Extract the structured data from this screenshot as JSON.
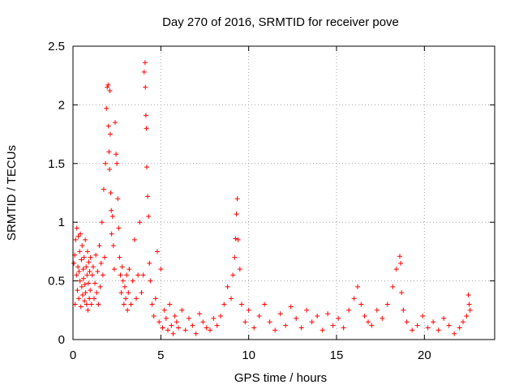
{
  "chart_data": {
    "type": "scatter",
    "title": "Day 270 of 2016, SRMTID for receiver pove",
    "xlabel": "GPS time / hours",
    "ylabel": "SRMTID / TECUs",
    "xlim": [
      0,
      24
    ],
    "ylim": [
      0,
      2.5
    ],
    "x_ticks": [
      0,
      5,
      10,
      15,
      20
    ],
    "x_tick_labels": [
      "0",
      "5",
      "10",
      "15",
      "20"
    ],
    "y_ticks": [
      0,
      0.5,
      1,
      1.5,
      2,
      2.5
    ],
    "y_tick_labels": [
      "0",
      "0.5",
      "1",
      "1.5",
      "2",
      "2.5"
    ],
    "grid": true,
    "legend": "none",
    "marker": "+",
    "color": "#ff0000",
    "series": [
      {
        "x": [
          0.05,
          0.1,
          0.12,
          0.15,
          0.2,
          0.22,
          0.25,
          0.28,
          0.3,
          0.33,
          0.35,
          0.38,
          0.4,
          0.42,
          0.45,
          0.48,
          0.5,
          0.52,
          0.55,
          0.58,
          0.6,
          0.63,
          0.65,
          0.68,
          0.7,
          0.72,
          0.75,
          0.78,
          0.8,
          0.83,
          0.85,
          0.88,
          0.9,
          0.93,
          0.95,
          0.98,
          1.0,
          1.05,
          1.1,
          1.15,
          1.2,
          1.25,
          1.3,
          1.35,
          1.4,
          1.45,
          1.5,
          1.55,
          1.6,
          1.65,
          1.7,
          1.75,
          1.8,
          1.85,
          1.9,
          1.95,
          2.0,
          2.02,
          2.05,
          2.08,
          2.1,
          2.12,
          2.15,
          2.18,
          2.2,
          2.25,
          2.3,
          2.35,
          2.4,
          2.45,
          2.5,
          2.55,
          2.6,
          2.65,
          2.7,
          2.75,
          2.8,
          2.85,
          2.9,
          2.95,
          3.0,
          3.05,
          3.1,
          3.15,
          3.2,
          3.3,
          3.4,
          3.5,
          3.6,
          3.7,
          3.8,
          3.9,
          4.0,
          4.05,
          4.1,
          4.12,
          4.15,
          4.18,
          4.2,
          4.25,
          4.3,
          4.35,
          4.4,
          4.5,
          4.6,
          4.7,
          4.8,
          4.9,
          5.0,
          5.1,
          5.2,
          5.3,
          5.4,
          5.5,
          5.6,
          5.7,
          5.8,
          5.9,
          6.0,
          6.2,
          6.4,
          6.6,
          6.8,
          7.0,
          7.2,
          7.4,
          7.6,
          7.8,
          8.0,
          8.2,
          8.4,
          8.6,
          8.8,
          9.0,
          9.1,
          9.2,
          9.25,
          9.3,
          9.35,
          9.4,
          9.5,
          9.6,
          9.8,
          10.0,
          10.3,
          10.6,
          10.9,
          11.2,
          11.5,
          11.8,
          12.1,
          12.4,
          12.7,
          13.0,
          13.3,
          13.6,
          13.9,
          14.2,
          14.5,
          14.8,
          15.1,
          15.4,
          15.7,
          16.0,
          16.2,
          16.4,
          16.6,
          16.8,
          17.0,
          17.3,
          17.6,
          17.9,
          18.2,
          18.4,
          18.6,
          18.65,
          18.7,
          18.8,
          19.0,
          19.3,
          19.6,
          19.9,
          20.2,
          20.5,
          20.8,
          21.1,
          21.4,
          21.7,
          22.0,
          22.2,
          22.4,
          22.5,
          22.55,
          22.6
        ],
        "y": [
          0.65,
          0.72,
          0.3,
          0.85,
          0.55,
          0.95,
          0.42,
          0.62,
          0.88,
          0.35,
          0.58,
          0.75,
          0.5,
          0.9,
          0.28,
          0.68,
          0.45,
          0.8,
          0.38,
          0.6,
          0.52,
          0.7,
          0.33,
          0.47,
          0.85,
          0.4,
          0.62,
          0.3,
          0.55,
          0.75,
          0.25,
          0.48,
          0.66,
          0.35,
          0.58,
          0.42,
          0.7,
          0.3,
          0.55,
          0.62,
          0.35,
          0.48,
          0.72,
          0.4,
          0.58,
          0.3,
          0.8,
          0.45,
          0.65,
          1.0,
          0.55,
          1.28,
          0.7,
          1.5,
          1.97,
          2.15,
          2.17,
          1.82,
          1.6,
          1.45,
          2.12,
          1.75,
          1.25,
          1.1,
          0.9,
          1.05,
          0.8,
          0.6,
          1.85,
          1.58,
          1.5,
          1.2,
          0.95,
          0.7,
          0.55,
          0.4,
          0.62,
          0.5,
          0.3,
          0.45,
          0.35,
          0.55,
          0.25,
          0.4,
          0.6,
          0.3,
          0.5,
          0.85,
          0.35,
          0.55,
          1.0,
          0.4,
          0.55,
          2.28,
          2.36,
          2.15,
          1.91,
          1.8,
          1.47,
          1.22,
          1.05,
          0.65,
          0.5,
          0.3,
          0.2,
          0.35,
          0.75,
          0.15,
          0.6,
          0.1,
          0.25,
          0.18,
          0.08,
          0.3,
          0.12,
          0.05,
          0.2,
          0.15,
          0.1,
          0.25,
          0.08,
          0.18,
          0.12,
          0.05,
          0.22,
          0.15,
          0.1,
          0.08,
          0.18,
          0.12,
          0.2,
          0.3,
          0.45,
          0.35,
          0.55,
          0.7,
          0.86,
          1.07,
          1.2,
          0.85,
          0.6,
          0.3,
          0.15,
          0.25,
          0.1,
          0.2,
          0.3,
          0.15,
          0.08,
          0.22,
          0.12,
          0.28,
          0.18,
          0.1,
          0.25,
          0.15,
          0.2,
          0.08,
          0.22,
          0.12,
          0.18,
          0.1,
          0.25,
          0.35,
          0.45,
          0.3,
          0.2,
          0.15,
          0.12,
          0.25,
          0.18,
          0.3,
          0.45,
          0.6,
          0.71,
          0.65,
          0.4,
          0.25,
          0.15,
          0.08,
          0.12,
          0.2,
          0.1,
          0.15,
          0.08,
          0.18,
          0.12,
          0.05,
          0.1,
          0.15,
          0.2,
          0.38,
          0.3,
          0.25
        ]
      }
    ]
  }
}
